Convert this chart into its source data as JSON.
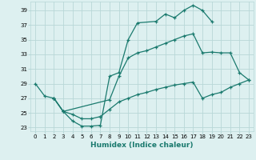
{
  "xlabel": "Humidex (Indice chaleur)",
  "xlim": [
    -0.5,
    23.5
  ],
  "ylim": [
    22.5,
    40.2
  ],
  "yticks": [
    23,
    25,
    27,
    29,
    31,
    33,
    35,
    37,
    39
  ],
  "xticks": [
    0,
    1,
    2,
    3,
    4,
    5,
    6,
    7,
    8,
    9,
    10,
    11,
    12,
    13,
    14,
    15,
    16,
    17,
    18,
    19,
    20,
    21,
    22,
    23
  ],
  "line_color": "#1a7a6e",
  "bg_color": "#ddf0f0",
  "grid_color": "#b8d8d8",
  "line1_x": [
    0,
    1,
    2,
    3,
    4,
    5,
    6,
    7,
    8,
    9,
    10,
    11,
    13,
    14,
    15,
    16,
    17,
    18,
    19
  ],
  "line1_y": [
    29,
    27.3,
    27,
    25.2,
    23.9,
    23.2,
    23.2,
    23.3,
    30,
    30.5,
    35,
    37.3,
    37.5,
    38.5,
    38,
    39,
    39.7,
    39,
    37.5
  ],
  "line2_x": [
    2,
    3,
    8,
    9,
    10,
    11,
    12,
    13,
    14,
    15,
    16,
    17,
    18,
    19,
    20,
    21,
    22,
    23
  ],
  "line2_y": [
    27,
    25.2,
    26.8,
    30,
    32.5,
    33.2,
    33.5,
    34,
    34.5,
    35,
    35.5,
    35.8,
    33.2,
    33.3,
    33.2,
    33.2,
    30.5,
    29.5
  ],
  "line3_x": [
    2,
    3,
    4,
    5,
    6,
    7,
    8,
    9,
    10,
    11,
    12,
    13,
    14,
    15,
    16,
    17,
    18,
    19,
    20,
    21,
    22,
    23
  ],
  "line3_y": [
    27,
    25.2,
    24.8,
    24.2,
    24.2,
    24.5,
    25.5,
    26.5,
    27,
    27.5,
    27.8,
    28.2,
    28.5,
    28.8,
    29,
    29.2,
    27,
    27.5,
    27.8,
    28.5,
    29,
    29.5
  ]
}
